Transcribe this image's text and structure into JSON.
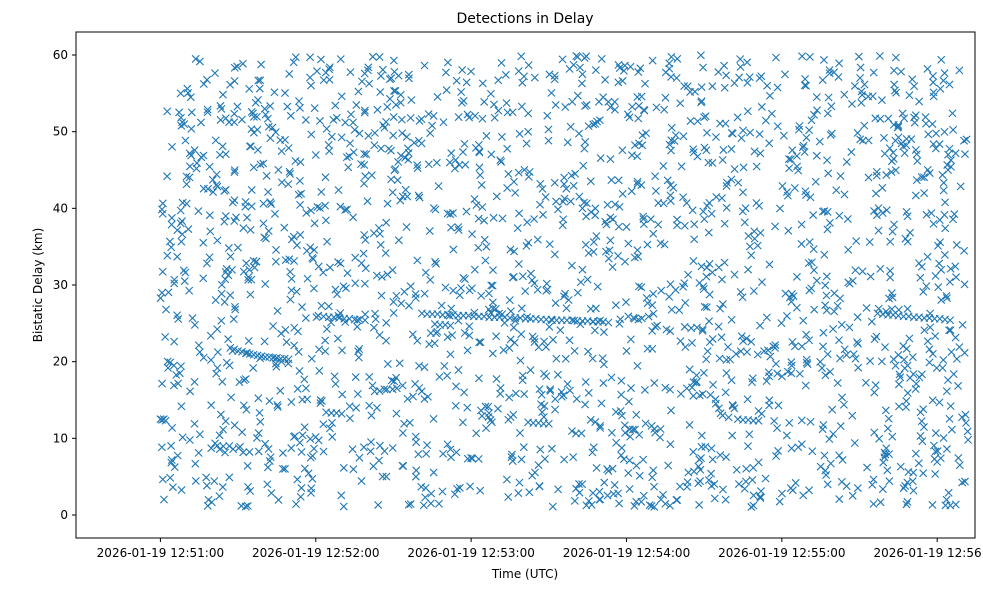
{
  "chart_data": {
    "type": "scatter",
    "title": "Detections in Delay",
    "xlabel": "Time (UTC)",
    "ylabel": "Bistatic Delay (km)",
    "x_ticks": [
      "2026-01-19 12:51:00",
      "2026-01-19 12:52:00",
      "2026-01-19 12:53:00",
      "2026-01-19 12:54:00",
      "2026-01-19 12:55:00",
      "2026-01-19 12:56:00"
    ],
    "x_tick_seconds": [
      0,
      60,
      120,
      180,
      240,
      300
    ],
    "y_ticks": [
      0,
      10,
      20,
      30,
      40,
      50,
      60
    ],
    "xlim_seconds": [
      -32.6,
      314.6
    ],
    "ylim": [
      -3,
      63
    ],
    "marker": "x",
    "color": "#1f77b4",
    "grid": false,
    "tracks": [
      {
        "x": [
          0,
          0.6,
          1.3,
          2.0
        ],
        "y": [
          12.5,
          12.4,
          12.5,
          12.3
        ]
      },
      {
        "x": [
          27,
          28.5,
          30,
          31.5,
          33,
          34.5,
          36,
          37.5,
          39,
          40.5,
          42,
          43.5,
          45,
          46.5,
          48,
          49.5
        ],
        "y": [
          21.8,
          21.6,
          21.4,
          21.3,
          21.1,
          21.0,
          20.9,
          20.8,
          20.7,
          20.6,
          20.6,
          20.5,
          20.5,
          20.4,
          20.4,
          20.3
        ]
      },
      {
        "x": [
          61,
          63,
          65,
          67,
          69,
          71,
          73,
          75,
          77,
          79
        ],
        "y": [
          26.0,
          25.9,
          25.8,
          25.8,
          25.7,
          25.6,
          25.6,
          25.5,
          25.5,
          25.4
        ]
      },
      {
        "x": [
          64,
          66,
          68,
          70
        ],
        "y": [
          13.4,
          13.3,
          13.3,
          13.2
        ]
      },
      {
        "x": [
          90,
          93,
          96
        ],
        "y": [
          27.8,
          27.6,
          27.3
        ]
      },
      {
        "x": [
          101,
          103,
          105,
          107,
          109,
          111,
          113,
          115,
          117,
          119,
          121,
          123,
          125,
          127,
          129,
          131,
          133,
          135,
          137,
          139,
          141,
          143,
          145,
          147,
          149,
          151,
          153,
          155,
          157,
          159,
          161,
          163,
          165,
          167,
          169,
          171,
          173
        ],
        "y": [
          26.3,
          26.2,
          26.2,
          26.2,
          26.1,
          26.1,
          26.1,
          26.0,
          26.0,
          26.0,
          25.9,
          25.9,
          25.9,
          25.8,
          25.8,
          25.8,
          25.8,
          25.7,
          25.7,
          25.7,
          25.6,
          25.6,
          25.6,
          25.5,
          25.5,
          25.5,
          25.4,
          25.4,
          25.4,
          25.4,
          25.3,
          25.3,
          25.3,
          25.2,
          25.2,
          25.2,
          25.1
        ]
      },
      {
        "x": [
          106,
          108,
          110,
          112
        ],
        "y": [
          24.9,
          24.8,
          24.8,
          24.7
        ]
      },
      {
        "x": [
          142,
          144,
          146,
          148,
          150
        ],
        "y": [
          12.1,
          12.0,
          12.0,
          11.9,
          11.9
        ]
      },
      {
        "x": [
          223,
          225,
          227,
          229,
          231
        ],
        "y": [
          12.5,
          12.4,
          12.4,
          12.3,
          12.3
        ]
      },
      {
        "x": [
          277,
          279,
          281,
          283,
          285,
          287,
          289,
          291,
          293,
          295,
          297,
          299,
          301,
          303,
          305
        ],
        "y": [
          26.3,
          26.2,
          26.1,
          26.1,
          26.0,
          25.9,
          25.9,
          25.8,
          25.8,
          25.7,
          25.7,
          25.6,
          25.6,
          25.5,
          25.4
        ]
      }
    ],
    "noise": {
      "count": 2000,
      "x_range": [
        0,
        312
      ],
      "y_range": [
        1,
        60
      ],
      "seed": 12345
    }
  }
}
